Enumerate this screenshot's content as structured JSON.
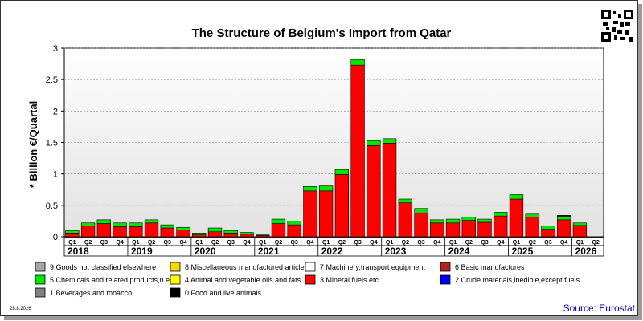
{
  "chart_data": {
    "type": "bar",
    "stacked": true,
    "title": "The Structure of Belgium's Import from Qatar",
    "ylabel": "* Billion €/Quartal",
    "ylim": [
      0,
      3
    ],
    "yticks": [
      "0",
      "0.5",
      "1",
      "1.5",
      "2",
      "2.5",
      "3"
    ],
    "grid": true,
    "quarters": [
      "Q1",
      "Q2",
      "Q3",
      "Q4",
      "Q1",
      "Q2",
      "Q3",
      "Q4",
      "Q1",
      "Q2",
      "Q3",
      "Q4",
      "Q1",
      "Q2",
      "Q3",
      "Q4",
      "Q1",
      "Q2",
      "Q3",
      "Q4",
      "Q1",
      "Q2",
      "Q3",
      "Q4",
      "Q1",
      "Q2",
      "Q3",
      "Q4",
      "Q1",
      "Q2",
      "Q3",
      "Q4",
      "Q1",
      "Q2"
    ],
    "years": [
      "2018",
      "2019",
      "2020",
      "2021",
      "2022",
      "2023",
      "2024",
      "2025",
      "2026"
    ],
    "series": [
      {
        "name": "3 Mineral fuels etc",
        "color": "#ff0000",
        "values": [
          0.06,
          0.17,
          0.21,
          0.16,
          0.16,
          0.22,
          0.14,
          0.11,
          0.03,
          0.08,
          0.06,
          0.04,
          0.02,
          0.21,
          0.19,
          0.73,
          0.73,
          0.99,
          2.73,
          1.45,
          1.49,
          0.54,
          0.38,
          0.22,
          0.22,
          0.26,
          0.23,
          0.33,
          0.6,
          0.31,
          0.12,
          0.27,
          0.18,
          0
        ]
      },
      {
        "name": "5 Chemicals and related products,n.e.s.",
        "color": "#00e600",
        "values": [
          0.04,
          0.05,
          0.06,
          0.06,
          0.06,
          0.05,
          0.05,
          0.04,
          0.03,
          0.06,
          0.04,
          0.03,
          0.01,
          0.07,
          0.06,
          0.07,
          0.08,
          0.08,
          0.09,
          0.08,
          0.07,
          0.06,
          0.06,
          0.05,
          0.06,
          0.05,
          0.05,
          0.06,
          0.07,
          0.05,
          0.05,
          0.05,
          0.04,
          0
        ]
      },
      {
        "name": "7 Machinery,transport equipment",
        "color": "#ffffff",
        "values": [
          0,
          0,
          0,
          0,
          0,
          0,
          0,
          0,
          0,
          0,
          0,
          0,
          0,
          0,
          0,
          0,
          0,
          0,
          0,
          0,
          0,
          0,
          0,
          0,
          0,
          0,
          0,
          0,
          0,
          0,
          0,
          0.01,
          0,
          0
        ]
      },
      {
        "name": "0 Food and live animals",
        "color": "#000000",
        "values": [
          0,
          0,
          0,
          0,
          0,
          0,
          0,
          0,
          0,
          0,
          0,
          0,
          0,
          0,
          0,
          0,
          0,
          0,
          0,
          0,
          0,
          0,
          0.01,
          0,
          0,
          0,
          0,
          0,
          0,
          0,
          0,
          0.01,
          0,
          0
        ]
      }
    ],
    "legend": [
      {
        "label": "9 Goods not classified elsewhere",
        "color": "#a6a6a6"
      },
      {
        "label": "8 Miscellaneous manufactured articles",
        "color": "#ffd700"
      },
      {
        "label": "7 Machinery,transport equipment",
        "color": "#ffffff"
      },
      {
        "label": "6 Basic manufactures",
        "color": "#b22222"
      },
      {
        "label": "5 Chemicals and related products,n.e.s.",
        "color": "#00e600"
      },
      {
        "label": "4 Animal and vegetable oils and fats",
        "color": "#ffff00"
      },
      {
        "label": "3 Mineral fuels etc",
        "color": "#ff0000"
      },
      {
        "label": "2 Crude materials,inedible,except fuels",
        "color": "#0000ff"
      },
      {
        "label": "1 Beverages and tobacco",
        "color": "#808080"
      },
      {
        "label": "0 Food and live animals",
        "color": "#000000"
      }
    ]
  },
  "footer": {
    "date": "28.8.2026",
    "source": "Source: Eurostat"
  }
}
